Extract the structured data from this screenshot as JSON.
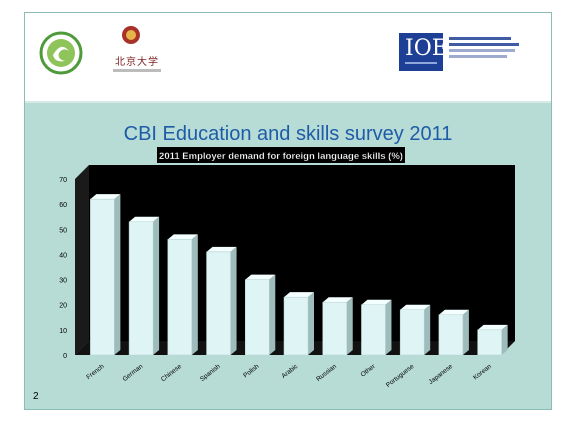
{
  "slide": {
    "title": "CBI Education and skills survey 2011",
    "number": "2"
  },
  "logos": {
    "left_icon": "swirl-logo-icon",
    "middle_icon": "university-seal-icon",
    "middle_text": "北京大学",
    "right_mark": "IOE",
    "right_icon": "ioe-logo-icon"
  },
  "chart_data": {
    "type": "bar",
    "title": "2011 Employer demand for foreign language skills (%)",
    "categories": [
      "French",
      "German",
      "Chinese",
      "Spanish",
      "Polish",
      "Arabic",
      "Russian",
      "Other",
      "Portuguese",
      "Japanese",
      "Korean"
    ],
    "values": [
      62,
      53,
      46,
      41,
      30,
      23,
      21,
      20,
      18,
      16,
      10
    ],
    "ylim": [
      0,
      70
    ],
    "yticks": [
      0,
      10,
      20,
      30,
      40,
      50,
      60,
      70
    ],
    "grid": false,
    "colors": {
      "bar": "#dff4f4",
      "bar_side": "#9fbcbc",
      "bar_top": "#f4ffff",
      "plot_bg": "#000000",
      "title_bg": "#000000"
    }
  }
}
